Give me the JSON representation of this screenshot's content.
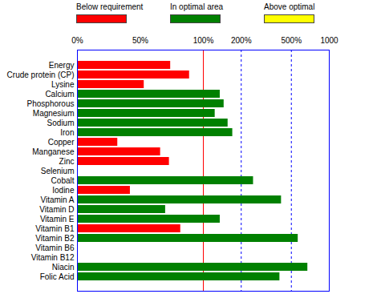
{
  "chart_data": {
    "type": "bar",
    "orientation": "horizontal",
    "legend": "top",
    "grid": true,
    "categories": [
      "Energy",
      "Crude protein (CP)",
      "Lysine",
      "Calcium",
      "Phosphorous",
      "Magnesium",
      "Sodium",
      "Iron",
      "Copper",
      "Manganese",
      "Zinc",
      "Selenium",
      "Cobalt",
      "Iodine",
      "Vitamin A",
      "Vitamin D",
      "Vitamin E",
      "Vitamin B1",
      "Vitamin B2",
      "Vitamin B6",
      "Vitamin B12",
      "Niacin",
      "Folic Acid"
    ],
    "series": [
      {
        "name": "Below requirement",
        "color": "#ff0000",
        "values": [
          74,
          89,
          53,
          null,
          null,
          null,
          null,
          null,
          32,
          66,
          73,
          null,
          null,
          42,
          null,
          null,
          null,
          82,
          null,
          null,
          null,
          null,
          null
        ]
      },
      {
        "name": "In optimal area",
        "color": "#008000",
        "values": [
          null,
          null,
          null,
          136,
          146,
          124,
          157,
          171,
          null,
          null,
          null,
          null,
          250,
          null,
          417,
          70,
          136,
          null,
          566,
          null,
          null,
          675,
          405
        ]
      },
      {
        "name": "Above optimal",
        "color": "#ffff00",
        "values": [
          null,
          null,
          null,
          null,
          null,
          null,
          null,
          null,
          null,
          null,
          null,
          null,
          null,
          null,
          null,
          null,
          null,
          null,
          null,
          null,
          null,
          null,
          null
        ]
      }
    ],
    "requirement": 100,
    "xlim": [
      0,
      1000
    ],
    "xticks": [
      {
        "value": 0,
        "label": "0%"
      },
      {
        "value": 50,
        "label": "50%"
      },
      {
        "value": 100,
        "label": "100%"
      },
      {
        "value": 200,
        "label": "200%"
      },
      {
        "value": 500,
        "label": "500%"
      },
      1000
    ]
  }
}
